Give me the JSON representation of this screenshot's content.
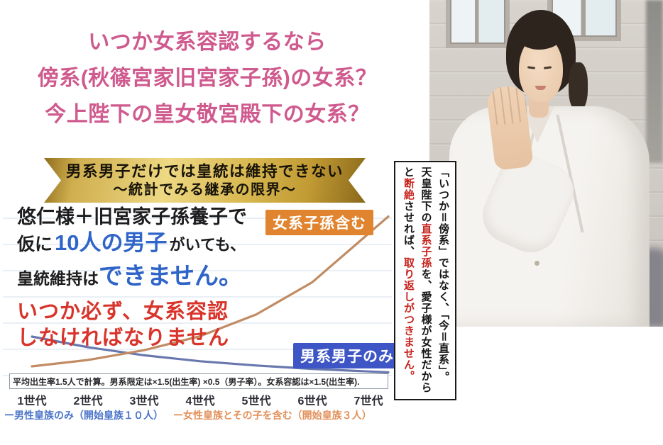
{
  "colors": {
    "title_pink": "#cf5a8e",
    "text_blue": "#2f64c8",
    "text_red": "#d8342b",
    "female_orange": "#e0842f",
    "male_blue": "#3d55c5",
    "legend_blue": "#4a74c8",
    "legend_orange": "#e2905a",
    "banner_text": "#171309"
  },
  "title": {
    "lines": [
      "いつか女系容認するなら",
      "傍系(秋篠宮家旧宮家子孫)の女系？",
      "今上陛下の皇女敬宮殿下の女系？"
    ]
  },
  "banner": {
    "line1": "男系男子だけでは皇統は維持できない",
    "line2": "～統計でみる継承の限界～"
  },
  "message": {
    "line1": "悠仁様＋旧宮家子孫養子で",
    "line2_a": "仮に",
    "line2_b": "10人の男子",
    "line2_c": "がいても、",
    "line3_a": "皇統維持は",
    "line3_b": "できません。",
    "line4": "いつか必ず、女系容認",
    "line5": "しなければなりません"
  },
  "chart_data": {
    "type": "line",
    "x_tick_labels": [
      "1世代",
      "2世代",
      "3世代",
      "4世代",
      "5世代",
      "6世代",
      "7世代"
    ],
    "series": [
      {
        "name": "男性皇族のみ（開始皇族１０人）",
        "color": "#6878ae",
        "start_count": 10,
        "multiplier_per_generation": 0.75,
        "values": [
          10,
          7.5,
          5.6,
          4.2,
          3.2,
          2.4,
          1.8
        ]
      },
      {
        "name": "女性皇族とその子を含む（開始皇族３人）",
        "color": "#c18b63",
        "start_count": 3,
        "multiplier_per_generation": 1.5,
        "values": [
          3,
          4.5,
          6.8,
          10.1,
          15.2,
          22.8,
          34.2
        ]
      }
    ],
    "annotations": {
      "female_line_label": "女系子孫含む",
      "male_line_label": "男系男子のみ"
    },
    "note": "平均出生率1.5人で計算。男系限定は×1.5(出生率) ×0.5（男子率）。女系容認は×1.5(出生率).",
    "grid": "faint-horizontal",
    "legend_position": "bottom"
  },
  "legend": {
    "male": "ー男性皇族のみ（開始皇族１０人）",
    "female": "ー女性皇族とその子を含む（開始皇族３人）"
  },
  "vertical_note": {
    "col1_a": "「いつか＝傍系」ではなく、「今＝直系」。",
    "col2_a": "天皇陛下の",
    "col2_b": "直系子孫",
    "col2_c": "を、愛子様が女性だから",
    "col3_a": "と",
    "col3_b": "断絶",
    "col3_c": "させれば、",
    "col3_d": "取り返しがつきません。"
  },
  "photo": {
    "description": "白いジャケット姿で微笑みながら手を振る敬宮（愛子内親王）。背景は建物の壁と窓、周囲にスーツ姿の人々。"
  }
}
